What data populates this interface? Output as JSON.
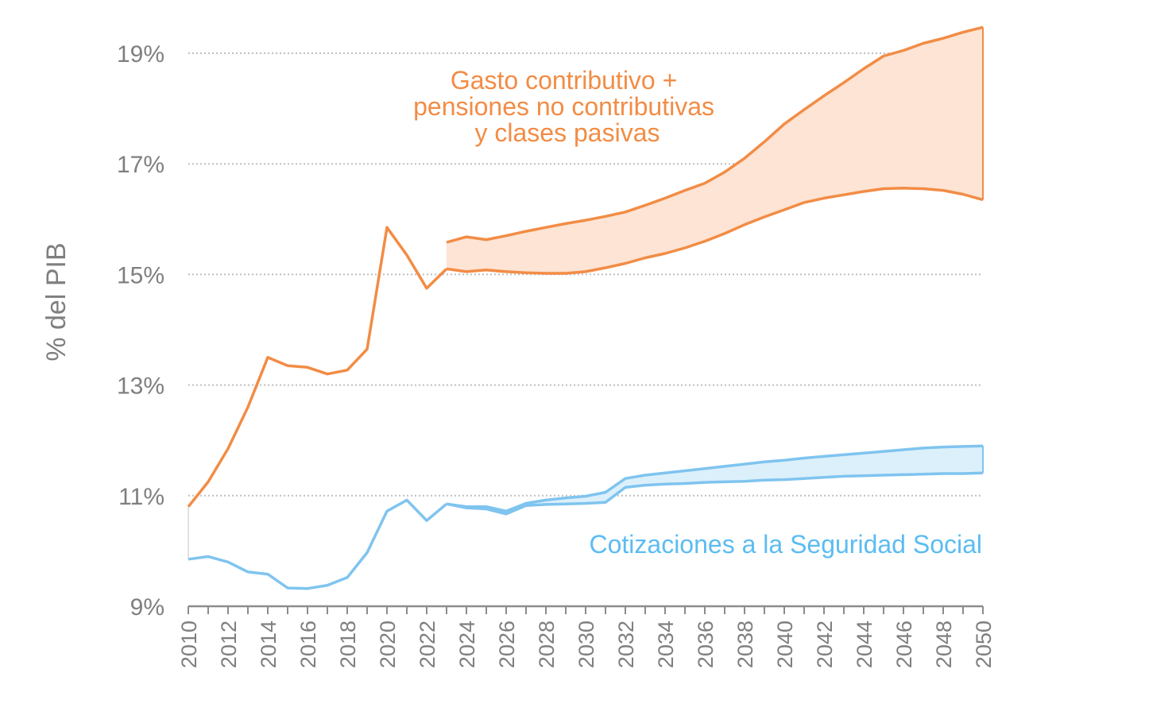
{
  "chart_data": {
    "type": "area",
    "title": "",
    "xlabel": "",
    "ylabel": "% del PIB",
    "xlim": [
      2010,
      2050
    ],
    "ylim": [
      9,
      19.5
    ],
    "y_ticks": [
      9,
      11,
      13,
      15,
      17,
      19
    ],
    "y_tick_labels": [
      "9%",
      "11%",
      "13%",
      "15%",
      "17%",
      "19%"
    ],
    "x_ticks": [
      2010,
      2012,
      2014,
      2016,
      2018,
      2020,
      2022,
      2024,
      2026,
      2028,
      2030,
      2032,
      2034,
      2036,
      2038,
      2040,
      2042,
      2044,
      2046,
      2048,
      2050
    ],
    "x_tick_labels": [
      "2010",
      "2012",
      "2014",
      "2016",
      "2018",
      "2020",
      "2022",
      "2024",
      "2026",
      "2028",
      "2030",
      "2032",
      "2034",
      "2036",
      "2038",
      "2040",
      "2042",
      "2044",
      "2046",
      "2048",
      "2050"
    ],
    "grid": "horizontal-dotted",
    "colors": {
      "gasto": "#f28c45",
      "gasto_fill": "#fde4d4",
      "cotizaciones": "#7fc4ef",
      "cotizaciones_fill": "#dcf0fb",
      "cotizaciones_label": "#5bbcf2",
      "text": "#7f7f7f",
      "grid": "#bfbfbf"
    },
    "series": [
      {
        "name": "Gasto contributivo + pensiones no contributivas y clases pasivas",
        "label_lines": [
          "Gasto contributivo +",
          "pensiones no contributivas",
          "y clases pasivas"
        ],
        "historical": {
          "x": [
            2010,
            2011,
            2012,
            2013,
            2014,
            2015,
            2016,
            2017,
            2018,
            2019,
            2020,
            2021,
            2022,
            2023
          ],
          "y": [
            10.8,
            11.25,
            11.85,
            12.6,
            13.5,
            13.35,
            13.32,
            13.2,
            13.27,
            13.65,
            15.85,
            15.35,
            14.75,
            15.1
          ]
        },
        "projection": {
          "x": [
            2023,
            2024,
            2025,
            2026,
            2027,
            2028,
            2029,
            2030,
            2031,
            2032,
            2033,
            2034,
            2035,
            2036,
            2037,
            2038,
            2039,
            2040,
            2041,
            2042,
            2043,
            2044,
            2045,
            2046,
            2047,
            2048,
            2049,
            2050
          ],
          "upper": [
            15.58,
            15.68,
            15.63,
            15.7,
            15.78,
            15.85,
            15.92,
            15.98,
            16.05,
            16.13,
            16.25,
            16.38,
            16.52,
            16.65,
            16.85,
            17.1,
            17.4,
            17.72,
            17.98,
            18.23,
            18.47,
            18.72,
            18.95,
            19.05,
            19.18,
            19.27,
            19.38,
            19.47
          ],
          "lower": [
            15.1,
            15.05,
            15.08,
            15.05,
            15.03,
            15.02,
            15.02,
            15.05,
            15.12,
            15.2,
            15.3,
            15.38,
            15.48,
            15.6,
            15.74,
            15.9,
            16.04,
            16.17,
            16.3,
            16.38,
            16.44,
            16.5,
            16.55,
            16.56,
            16.55,
            16.52,
            16.45,
            16.35
          ]
        }
      },
      {
        "name": "Cotizaciones a la Seguridad Social",
        "historical": {
          "x": [
            2010,
            2011,
            2012,
            2013,
            2014,
            2015,
            2016,
            2017,
            2018,
            2019,
            2020,
            2021,
            2022,
            2023
          ],
          "y": [
            9.85,
            9.9,
            9.8,
            9.62,
            9.58,
            9.33,
            9.32,
            9.38,
            9.52,
            9.97,
            10.72,
            10.92,
            10.55,
            10.85
          ]
        },
        "projection": {
          "x": [
            2023,
            2024,
            2025,
            2026,
            2027,
            2028,
            2029,
            2030,
            2031,
            2032,
            2033,
            2034,
            2035,
            2036,
            2037,
            2038,
            2039,
            2040,
            2041,
            2042,
            2043,
            2044,
            2045,
            2046,
            2047,
            2048,
            2049,
            2050
          ],
          "upper": [
            10.85,
            10.8,
            10.8,
            10.72,
            10.86,
            10.92,
            10.96,
            10.99,
            11.06,
            11.31,
            11.37,
            11.41,
            11.45,
            11.49,
            11.53,
            11.57,
            11.61,
            11.64,
            11.68,
            11.71,
            11.74,
            11.77,
            11.8,
            11.83,
            11.86,
            11.88,
            11.89,
            11.9
          ],
          "lower": [
            10.85,
            10.78,
            10.76,
            10.67,
            10.82,
            10.84,
            10.85,
            10.86,
            10.88,
            11.15,
            11.19,
            11.21,
            11.22,
            11.24,
            11.25,
            11.26,
            11.28,
            11.29,
            11.31,
            11.33,
            11.35,
            11.36,
            11.37,
            11.38,
            11.39,
            11.4,
            11.4,
            11.41
          ]
        }
      }
    ]
  }
}
